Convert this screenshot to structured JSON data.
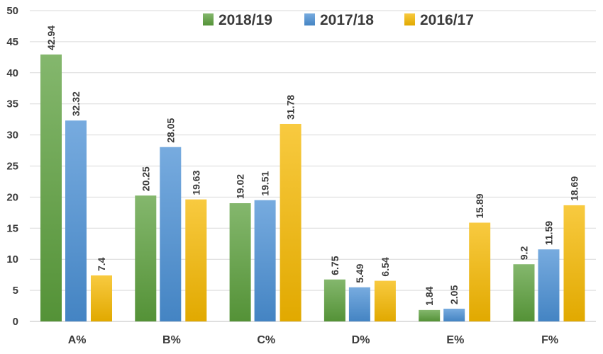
{
  "chart_data": {
    "type": "bar",
    "categories": [
      "A%",
      "B%",
      "C%",
      "D%",
      "E%",
      "F%"
    ],
    "series": [
      {
        "name": "2018/19",
        "color": "#5b9f3c",
        "values": [
          42.94,
          20.25,
          19.02,
          6.75,
          1.84,
          9.2
        ]
      },
      {
        "name": "2017/18",
        "color": "#4a8fd4",
        "values": [
          32.32,
          28.05,
          19.51,
          5.49,
          2.05,
          11.59
        ]
      },
      {
        "name": "2016/17",
        "color": "#f5b800",
        "values": [
          7.4,
          19.63,
          31.78,
          6.54,
          15.89,
          18.69
        ]
      }
    ],
    "data_labels": [
      [
        "42.94",
        "20.25",
        "19.02",
        "6.75",
        "1.84",
        "9.2"
      ],
      [
        "32.32",
        "28.05",
        "19.51",
        "5.49",
        "2.05",
        "11.59"
      ],
      [
        "7.4",
        "19.63",
        "31.78",
        "6.54",
        "15.89",
        "18.69"
      ]
    ],
    "yticks": [
      0,
      5,
      10,
      15,
      20,
      25,
      30,
      35,
      40,
      45,
      50
    ],
    "ytick_labels": [
      "0",
      "5",
      "10",
      "15",
      "20",
      "25",
      "30",
      "35",
      "40",
      "45",
      "50"
    ],
    "ylim": [
      0,
      50
    ],
    "grid": true,
    "legend_position": "top-right",
    "title": "",
    "xlabel": "",
    "ylabel": ""
  }
}
